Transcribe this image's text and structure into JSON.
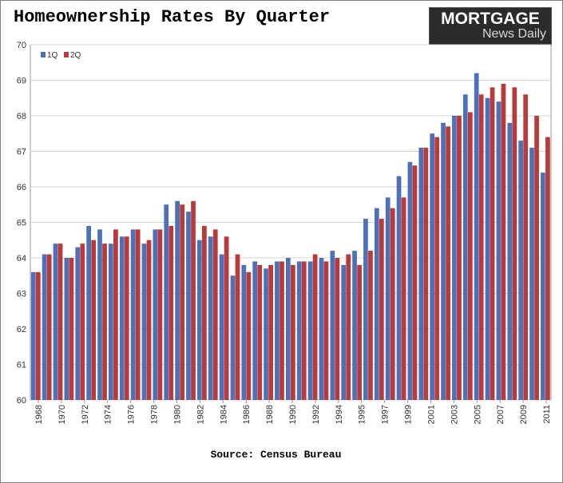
{
  "chart_data": {
    "type": "bar",
    "title": "Homeownership Rates By Quarter",
    "source": "Source: Census Bureau",
    "logo": {
      "top": "MORTGAGE",
      "bottom": "News Daily"
    },
    "ylim": [
      60,
      70
    ],
    "y_ticks": [
      "60",
      "61",
      "62",
      "63",
      "64",
      "65",
      "66",
      "67",
      "68",
      "69",
      "70"
    ],
    "x_tick_labels": [
      "1968",
      "1970",
      "1972",
      "1974",
      "1976",
      "1978",
      "1980",
      "1982",
      "1984",
      "1986",
      "1988",
      "1990",
      "1992",
      "1994",
      "1995",
      "1997",
      "1999",
      "2001",
      "2003",
      "2005",
      "2007",
      "2009",
      "2011"
    ],
    "grid": true,
    "legend_position": "top-left",
    "colors": {
      "1Q": "#4f6fb6",
      "2Q": "#b83a3a",
      "3Q": "#8fb84a",
      "4Q": "#7a5ba0"
    },
    "series": [
      {
        "name": "1Q",
        "values": [
          63.6,
          64.1,
          64.4,
          64.0,
          64.3,
          64.9,
          64.8,
          64.4,
          64.6,
          64.8,
          64.4,
          64.8,
          65.5,
          65.6,
          65.3,
          64.5,
          64.6,
          64.1,
          63.5,
          63.8,
          63.9,
          63.7,
          63.9,
          64.0,
          63.9,
          63.9,
          64.0,
          64.2,
          63.8,
          64.2,
          65.1,
          65.4,
          65.7,
          66.3,
          66.7,
          67.1,
          67.5,
          67.8,
          68.0,
          68.6,
          69.2,
          68.5,
          68.4,
          67.8,
          67.3,
          67.1,
          66.4
        ]
      },
      {
        "name": "2Q",
        "values": [
          63.6,
          64.1,
          64.4,
          64.0,
          64.4,
          64.5,
          64.4,
          64.8,
          64.6,
          64.8,
          64.5,
          64.8,
          64.9,
          65.5,
          65.6,
          64.9,
          64.8,
          64.6,
          64.1,
          63.6,
          63.8,
          63.8,
          63.9,
          63.8,
          63.9,
          64.1,
          63.9,
          64.0,
          64.1,
          63.8,
          64.2,
          65.1,
          65.4,
          65.7,
          66.6,
          67.1,
          67.4,
          67.7,
          68.0,
          68.1,
          68.6,
          68.8,
          68.9,
          68.8,
          68.6,
          68.0,
          67.4
        ]
      }
    ]
  }
}
